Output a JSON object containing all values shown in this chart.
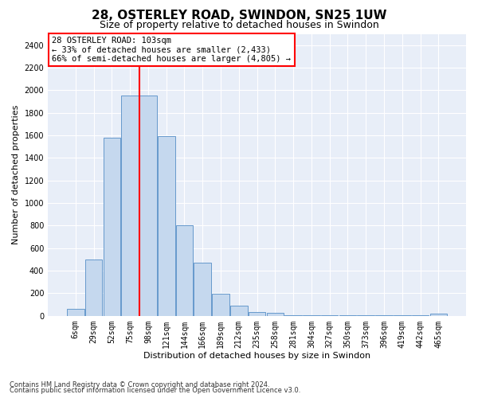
{
  "title": "28, OSTERLEY ROAD, SWINDON, SN25 1UW",
  "subtitle": "Size of property relative to detached houses in Swindon",
  "xlabel": "Distribution of detached houses by size in Swindon",
  "ylabel": "Number of detached properties",
  "footnote1": "Contains HM Land Registry data © Crown copyright and database right 2024.",
  "footnote2": "Contains public sector information licensed under the Open Government Licence v3.0.",
  "annotation_title": "28 OSTERLEY ROAD: 103sqm",
  "annotation_line2": "← 33% of detached houses are smaller (2,433)",
  "annotation_line3": "66% of semi-detached houses are larger (4,805) →",
  "bar_color": "#c5d8ee",
  "bar_edge_color": "#6699cc",
  "categories": [
    "6sqm",
    "29sqm",
    "52sqm",
    "75sqm",
    "98sqm",
    "121sqm",
    "144sqm",
    "166sqm",
    "189sqm",
    "212sqm",
    "235sqm",
    "258sqm",
    "281sqm",
    "304sqm",
    "327sqm",
    "350sqm",
    "373sqm",
    "396sqm",
    "419sqm",
    "442sqm",
    "465sqm"
  ],
  "values": [
    60,
    500,
    1580,
    1950,
    1950,
    1590,
    800,
    475,
    195,
    90,
    35,
    25,
    5,
    5,
    5,
    5,
    5,
    5,
    5,
    5,
    20
  ],
  "red_line_index": 4,
  "ylim": [
    0,
    2500
  ],
  "yticks": [
    0,
    200,
    400,
    600,
    800,
    1000,
    1200,
    1400,
    1600,
    1800,
    2000,
    2200,
    2400
  ],
  "background_color": "#e8eef8",
  "grid_color": "#ffffff",
  "title_fontsize": 11,
  "subtitle_fontsize": 9,
  "axis_label_fontsize": 8,
  "tick_fontsize": 7,
  "annotation_fontsize": 7.5
}
